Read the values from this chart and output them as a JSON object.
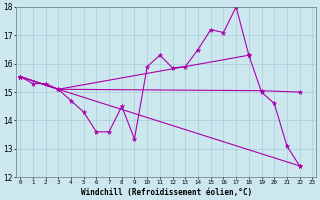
{
  "bg_color": "#cce8ee",
  "line_color": "#aa00aa",
  "xlabel": "Windchill (Refroidissement éolien,°C)",
  "xlim": [
    0,
    23
  ],
  "ylim": [
    12,
    18
  ],
  "yticks": [
    12,
    13,
    14,
    15,
    16,
    17,
    18
  ],
  "xticks": [
    0,
    1,
    2,
    3,
    4,
    5,
    6,
    7,
    8,
    9,
    10,
    11,
    12,
    13,
    14,
    15,
    16,
    17,
    18,
    19,
    20,
    21,
    22,
    23
  ],
  "line1_x": [
    0,
    1,
    2,
    3,
    4,
    5,
    6,
    7,
    8,
    9,
    10,
    11,
    12,
    13,
    14,
    15,
    16,
    17,
    18,
    19,
    20,
    21,
    22
  ],
  "line1_y": [
    15.55,
    15.3,
    15.3,
    15.1,
    14.7,
    14.3,
    13.6,
    13.6,
    14.5,
    13.35,
    15.9,
    16.3,
    15.85,
    15.9,
    16.5,
    17.2,
    17.1,
    18.0,
    16.3,
    15.0,
    14.6,
    13.1,
    12.4
  ],
  "line2_x": [
    0,
    3,
    18
  ],
  "line2_y": [
    15.55,
    15.1,
    16.3
  ],
  "line3_x": [
    0,
    3,
    19,
    22
  ],
  "line3_y": [
    15.55,
    15.1,
    15.05,
    15.0
  ],
  "line4_x": [
    0,
    3,
    22
  ],
  "line4_y": [
    15.55,
    15.1,
    12.4
  ]
}
